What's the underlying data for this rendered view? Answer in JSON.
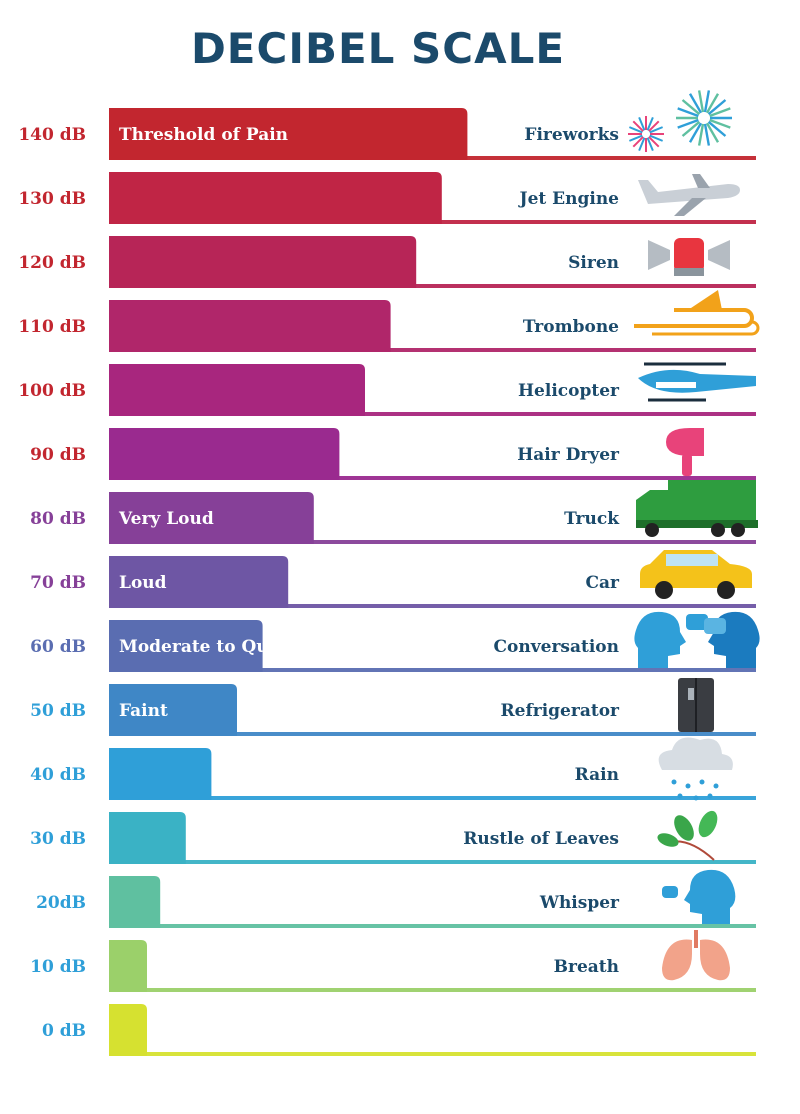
{
  "chart_data": {
    "type": "bar",
    "title": "DECIBEL SCALE",
    "orientation": "horizontal",
    "unit": "dB",
    "xlim": [
      0,
      160
    ],
    "rows": [
      {
        "tick": "140 dB",
        "db": 140,
        "source": "Fireworks",
        "level": "Threshold of Pain",
        "color": "#c2262f",
        "icon": "fireworks-icon"
      },
      {
        "tick": "130 dB",
        "db": 130,
        "source": "Jet Engine",
        "level": "",
        "color": "#c02545",
        "icon": "airplane-icon"
      },
      {
        "tick": "120 dB",
        "db": 120,
        "source": "Siren",
        "level": "",
        "color": "#b72557",
        "icon": "siren-icon"
      },
      {
        "tick": "110 dB",
        "db": 110,
        "source": "Trombone",
        "level": "",
        "color": "#b0266a",
        "icon": "trombone-icon"
      },
      {
        "tick": "100 dB",
        "db": 100,
        "source": "Helicopter",
        "level": "",
        "color": "#a8267e",
        "icon": "helicopter-icon"
      },
      {
        "tick": "90 dB",
        "db": 90,
        "source": "Hair Dryer",
        "level": "",
        "color": "#9a2a8f",
        "icon": "hair-dryer-icon"
      },
      {
        "tick": "80 dB",
        "db": 80,
        "source": "Truck",
        "level": "Very Loud",
        "color": "#864098",
        "icon": "truck-icon"
      },
      {
        "tick": "70 dB",
        "db": 70,
        "source": "Car",
        "level": "Loud",
        "color": "#6e56a4",
        "icon": "car-icon"
      },
      {
        "tick": "60 dB",
        "db": 60,
        "source": "Conversation",
        "level": "Moderate to Quiet",
        "color": "#5a6db1",
        "icon": "conversation-icon"
      },
      {
        "tick": "50 dB",
        "db": 50,
        "source": "Refrigerator",
        "level": "Faint",
        "color": "#3f87c6",
        "icon": "refrigerator-icon"
      },
      {
        "tick": "40 dB",
        "db": 40,
        "source": "Rain",
        "level": "",
        "color": "#2f9fd8",
        "icon": "rain-cloud-icon"
      },
      {
        "tick": "30 dB",
        "db": 30,
        "source": "Rustle of Leaves",
        "level": "",
        "color": "#3ab2c5",
        "icon": "leaves-icon"
      },
      {
        "tick": "20dB",
        "db": 20,
        "source": "Whisper",
        "level": "",
        "color": "#5fc0a0",
        "icon": "whisper-head-icon"
      },
      {
        "tick": "10 dB",
        "db": 10,
        "source": "Breath",
        "level": "",
        "color": "#9bd06a",
        "icon": "lungs-icon"
      },
      {
        "tick": "0 dB",
        "db": 0,
        "source": "",
        "level": "",
        "color": "#d6e130",
        "icon": ""
      }
    ],
    "tick_colors": {
      "red": "#c2262f",
      "purple": "#864098",
      "indigo": "#5a6db1",
      "blue": "#2f9fd8"
    }
  }
}
